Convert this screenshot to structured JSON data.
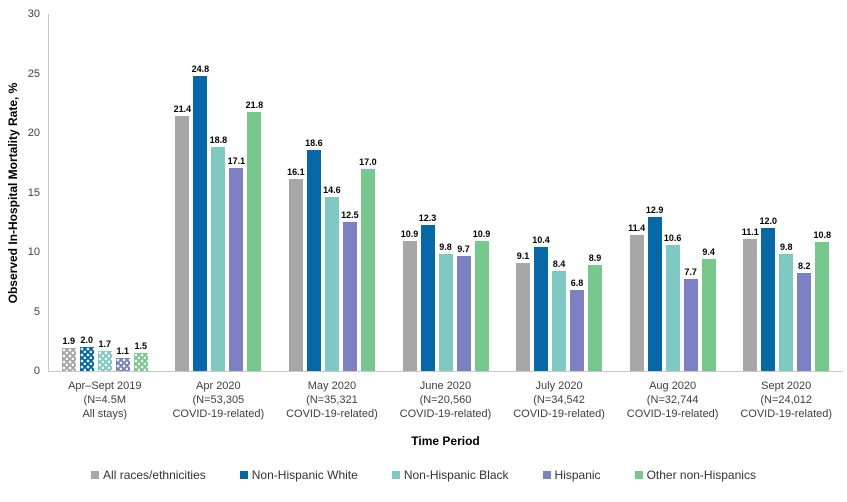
{
  "chart_data": {
    "type": "bar",
    "title": "",
    "ylabel": "Observed In-Hospital Mortality Rate, %",
    "xlabel": "Time Period",
    "ylim": [
      0,
      30
    ],
    "yticks": [
      0,
      5,
      10,
      15,
      20,
      25,
      30
    ],
    "grid": false,
    "legend_position": "bottom",
    "value_label_format": "one-decimal",
    "categories": [
      {
        "label_lines": [
          "Apr–Sept 2019",
          "(N=4.5M",
          "All stays)"
        ],
        "patterned": true
      },
      {
        "label_lines": [
          "Apr 2020",
          "(N=53,305",
          "COVID-19-related)"
        ],
        "patterned": false
      },
      {
        "label_lines": [
          "May 2020",
          "(N=35,321",
          "COVID-19-related)"
        ],
        "patterned": false
      },
      {
        "label_lines": [
          "June 2020",
          "(N=20,560",
          "COVID-19-related)"
        ],
        "patterned": false
      },
      {
        "label_lines": [
          "July 2020",
          "(N=34,542",
          "COVID-19-related)"
        ],
        "patterned": false
      },
      {
        "label_lines": [
          "Aug 2020",
          "(N=32,744",
          "COVID-19-related)"
        ],
        "patterned": false
      },
      {
        "label_lines": [
          "Sept 2020",
          "(N=24,012",
          "COVID-19-related)"
        ],
        "patterned": false
      }
    ],
    "series": [
      {
        "name": "All races/ethnicities",
        "color": "#a7a7a7",
        "values": [
          1.9,
          21.4,
          16.1,
          10.9,
          9.1,
          11.4,
          11.1
        ]
      },
      {
        "name": "Non-Hispanic White",
        "color": "#0768a9",
        "values": [
          2.0,
          24.8,
          18.6,
          12.3,
          10.4,
          12.9,
          12.0
        ]
      },
      {
        "name": "Non-Hispanic Black",
        "color": "#7ec9c2",
        "values": [
          1.7,
          18.8,
          14.6,
          9.8,
          8.4,
          10.6,
          9.8
        ]
      },
      {
        "name": "Hispanic",
        "color": "#7b81c4",
        "values": [
          1.1,
          17.1,
          12.5,
          9.7,
          6.8,
          7.7,
          8.2
        ]
      },
      {
        "name": "Other non-Hispanics",
        "color": "#77c88d",
        "values": [
          1.5,
          21.8,
          17.0,
          10.9,
          8.9,
          9.4,
          10.8
        ]
      }
    ],
    "colors": {
      "axis_line": "#c9c9c9",
      "tick_text": "#3f3f3f",
      "value_label_text": "#000000"
    }
  }
}
